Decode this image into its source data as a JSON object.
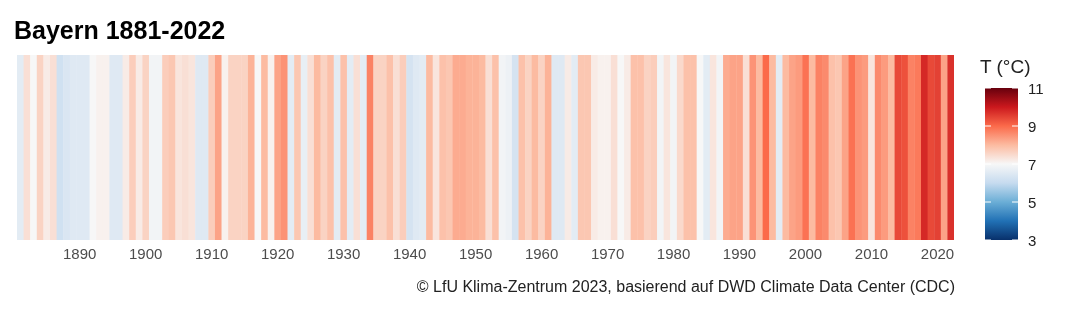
{
  "chart_data": {
    "type": "heatmap",
    "title": "Bayern 1881-2022",
    "clabel": "T (°C)",
    "categories": [
      null,
      null,
      null,
      null,
      null,
      null,
      null,
      null,
      null,
      "1890",
      null,
      null,
      null,
      null,
      null,
      null,
      null,
      null,
      null,
      "1900",
      null,
      null,
      null,
      null,
      null,
      null,
      null,
      null,
      null,
      "1910",
      null,
      null,
      null,
      null,
      null,
      null,
      null,
      null,
      null,
      "1920",
      null,
      null,
      null,
      null,
      null,
      null,
      null,
      null,
      null,
      "1930",
      null,
      null,
      null,
      null,
      null,
      null,
      null,
      null,
      null,
      "1940",
      null,
      null,
      null,
      null,
      null,
      null,
      null,
      null,
      null,
      "1950",
      null,
      null,
      null,
      null,
      null,
      null,
      null,
      null,
      null,
      "1960",
      null,
      null,
      null,
      null,
      null,
      null,
      null,
      null,
      null,
      "1970",
      null,
      null,
      null,
      null,
      null,
      null,
      null,
      null,
      null,
      "1980",
      null,
      null,
      null,
      null,
      null,
      null,
      null,
      null,
      null,
      "1990",
      null,
      null,
      null,
      null,
      null,
      null,
      null,
      null,
      null,
      "2000",
      null,
      null,
      null,
      null,
      null,
      null,
      null,
      null,
      null,
      "2010",
      null,
      null,
      null,
      null,
      null,
      null,
      null,
      null,
      null,
      "2020",
      null,
      null
    ],
    "y_categories": [
      null
    ],
    "cells": [
      [
        6.6,
        7.4,
        7.0,
        7.6,
        7.2,
        7.4,
        6.2,
        6.4,
        6.5,
        6.5,
        6.5,
        7.0,
        7.1,
        7.1,
        6.5,
        6.5,
        7.2,
        7.7,
        7.2,
        7.6,
        6.9,
        6.9,
        7.7,
        7.8,
        7.3,
        7.4,
        7.3,
        6.5,
        6.5,
        7.7,
        8.3,
        7.1,
        7.6,
        7.6,
        7.6,
        8.1,
        7.0,
        8.0,
        7.1,
        8.3,
        8.5,
        6.6,
        7.8,
        6.7,
        7.4,
        8.0,
        7.6,
        7.9,
        6.6,
        7.9,
        6.6,
        7.4,
        6.6,
        8.7,
        7.6,
        7.6,
        7.9,
        7.4,
        7.7,
        6.3,
        6.5,
        6.6,
        8.0,
        7.3,
        7.9,
        7.8,
        8.2,
        8.2,
        8.1,
        8.1,
        8.0,
        7.4,
        7.9,
        6.9,
        6.8,
        6.3,
        7.9,
        7.6,
        8.0,
        7.6,
        8.1,
        6.5,
        6.5,
        7.2,
        6.6,
        7.8,
        7.8,
        7.2,
        7.1,
        7.1,
        7.4,
        7.0,
        7.2,
        7.9,
        7.9,
        7.6,
        7.7,
        6.9,
        7.3,
        6.9,
        7.5,
        7.9,
        7.9,
        7.0,
        6.6,
        7.3,
        6.9,
        8.2,
        8.3,
        8.3,
        7.4,
        8.5,
        8.0,
        9.0,
        8.0,
        6.6,
        8.0,
        8.3,
        8.4,
        8.9,
        8.0,
        8.7,
        8.6,
        7.9,
        7.8,
        8.3,
        8.9,
        8.5,
        8.4,
        7.3,
        8.6,
        8.4,
        8.0,
        9.4,
        9.3,
        8.7,
        8.8,
        9.8,
        9.4,
        9.5,
        8.3,
        9.7
      ]
    ],
    "clim": [
      3,
      11
    ],
    "cticks": [
      3,
      5,
      7,
      9,
      11
    ],
    "annotations": [
      "© LfU Klima-Zentrum 2023, basierend auf DWD Climate Data Center (CDC)"
    ]
  }
}
